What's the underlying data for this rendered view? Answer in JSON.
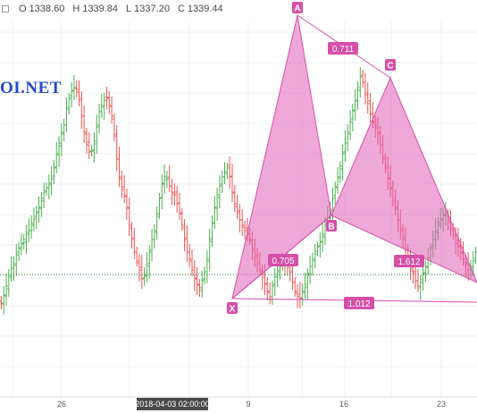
{
  "ohlc_legend": {
    "open_label": "O",
    "open": "1338.60",
    "high_label": "H",
    "high": "1339.84",
    "low_label": "L",
    "low": "1337.20",
    "close_label": "C",
    "close": "1339.44"
  },
  "watermark": "OI.NET",
  "colors": {
    "bull": "#4caf50",
    "bear": "#ef5350",
    "pattern_fill": "#e060b8",
    "pattern_stroke": "#d64fa8",
    "label_bg": "#d64fa8",
    "grid": "#eef0f3",
    "current_price_line": "#3a7a3a"
  },
  "chart_data": {
    "type": "ohlc",
    "time_labels": [
      "26",
      "2018-04-03 02:00:00",
      "9",
      "16",
      "23"
    ],
    "crosshair_time": "2018-04-03 02:00:00",
    "pattern": {
      "name": "harmonic",
      "points": [
        {
          "label": "X",
          "bar": 64
        },
        {
          "label": "A",
          "bar": 81
        },
        {
          "label": "B",
          "bar": 91
        },
        {
          "label": "C",
          "bar": 108
        }
      ],
      "ratios": [
        {
          "label": "0.711",
          "from": "A",
          "to": "C"
        },
        {
          "label": "0.705",
          "from": "X",
          "to": "B"
        },
        {
          "label": "1.612",
          "from": "B",
          "to": "D"
        },
        {
          "label": "1.012",
          "from": "X",
          "to": "D"
        }
      ]
    },
    "close_series": [
      340,
      330,
      320,
      310,
      300,
      295,
      285,
      278,
      272,
      268,
      262,
      258,
      250,
      245,
      238,
      232,
      222,
      215,
      210,
      205,
      200,
      188,
      172,
      160,
      150,
      140,
      120,
      110,
      102,
      98,
      100,
      112,
      130,
      148,
      162,
      170,
      168,
      158,
      142,
      125,
      118,
      112,
      110,
      118,
      130,
      152,
      178,
      198,
      212,
      220,
      232,
      252,
      268,
      282,
      292,
      302,
      312,
      308,
      295,
      282,
      268,
      258,
      242,
      222,
      205,
      198,
      200,
      208,
      215,
      218,
      228,
      238,
      252,
      268,
      282,
      290,
      302,
      312,
      318,
      322,
      314,
      304,
      290,
      270,
      250,
      232,
      218,
      208,
      198,
      192,
      188,
      198,
      215,
      228,
      238,
      246,
      252,
      258,
      262,
      268,
      278,
      288,
      295,
      302,
      310,
      318,
      326,
      332,
      320,
      310,
      302,
      298,
      296,
      292,
      296,
      305,
      316,
      326,
      332,
      334,
      326,
      318,
      308,
      298,
      290,
      284,
      276,
      270,
      262,
      252,
      244,
      234,
      222,
      210,
      198,
      186,
      172,
      160,
      148,
      136,
      124,
      112,
      98,
      86,
      92,
      104,
      116,
      128,
      136,
      140,
      150,
      162,
      176,
      188,
      200,
      210,
      222,
      234,
      246,
      256,
      268,
      280,
      288,
      300,
      306,
      314,
      320,
      316,
      306,
      298,
      288,
      278,
      268,
      258,
      252,
      246,
      240,
      238,
      248,
      256,
      262,
      272,
      276,
      282,
      290,
      296,
      302,
      298,
      292,
      282
    ]
  }
}
